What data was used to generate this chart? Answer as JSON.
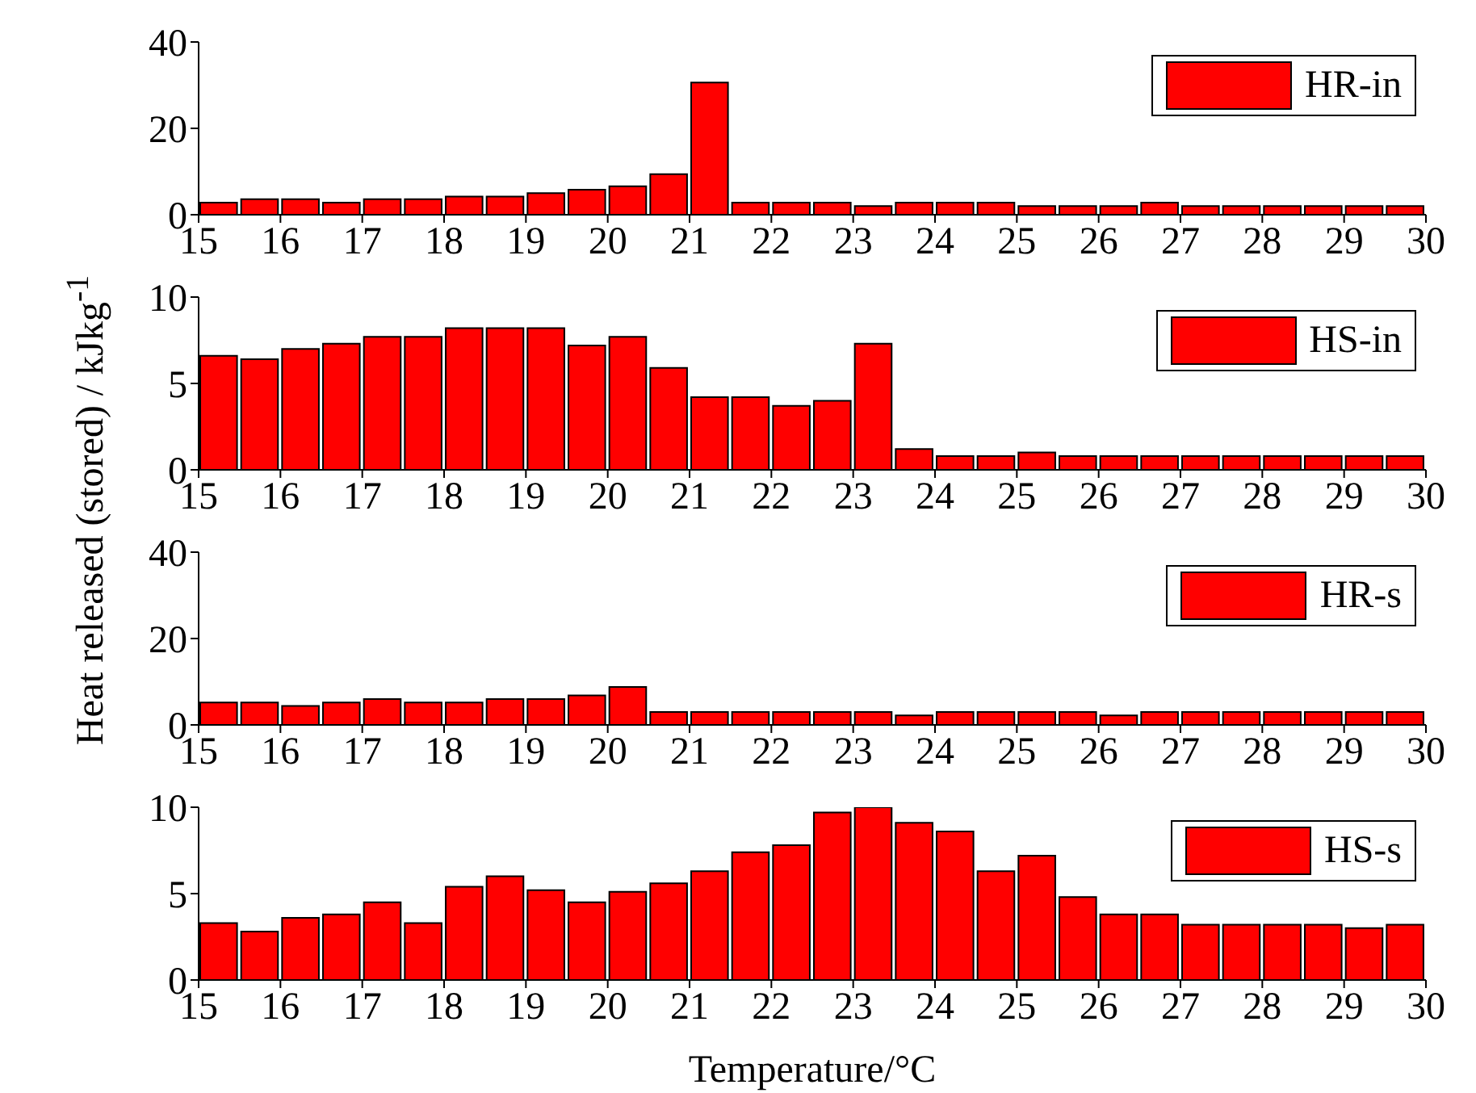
{
  "chart_data": [
    {
      "type": "histogram",
      "ylabel": "Heat released (stored) / kJkg$^{-1}$",
      "bins": [
        15,
        15.5,
        16,
        16.5,
        17,
        17.5,
        18,
        18.5,
        19,
        19.5,
        20,
        20.5,
        21,
        21.5,
        22,
        22.5,
        23,
        23.5,
        24,
        24.5,
        25,
        25.5,
        26,
        26.5,
        27,
        27.5,
        28,
        28.5,
        29,
        29.5,
        30
      ],
      "series": [
        {
          "name": "HR-in",
          "color": "#ff0000",
          "values": [
            2.8,
            3.6,
            3.6,
            2.8,
            3.6,
            3.6,
            4.2,
            4.2,
            5.0,
            5.8,
            6.6,
            9.4,
            30.6,
            2.8,
            2.8,
            2.8,
            2.0,
            2.8,
            2.8,
            2.8,
            2.0,
            2.0,
            2.0,
            2.8,
            2.0,
            2.0,
            2.0,
            2.0,
            2.0,
            2.0
          ]
        }
      ],
      "xlim": [
        15,
        30
      ],
      "xticks": [
        15,
        16,
        17,
        18,
        19,
        20,
        21,
        22,
        23,
        24,
        25,
        26,
        27,
        28,
        29,
        30
      ],
      "ylim": [
        0,
        40
      ],
      "yticks": [
        0,
        20,
        40
      ],
      "legend": "top right"
    },
    {
      "type": "histogram",
      "bins": [
        15,
        15.5,
        16,
        16.5,
        17,
        17.5,
        18,
        18.5,
        19,
        19.5,
        20,
        20.5,
        21,
        21.5,
        22,
        22.5,
        23,
        23.5,
        24,
        24.5,
        25,
        25.5,
        26,
        26.5,
        27,
        27.5,
        28,
        28.5,
        29,
        29.5,
        30
      ],
      "series": [
        {
          "name": "HS-in",
          "color": "#ff0000",
          "values": [
            6.6,
            6.4,
            7.0,
            7.3,
            7.7,
            7.7,
            8.2,
            8.2,
            8.2,
            7.2,
            7.7,
            5.9,
            4.2,
            4.2,
            3.7,
            4.0,
            7.3,
            1.2,
            0.8,
            0.8,
            1.0,
            0.8,
            0.8,
            0.8,
            0.8,
            0.8,
            0.8,
            0.8,
            0.8,
            0.8
          ]
        }
      ],
      "xlim": [
        15,
        30
      ],
      "xticks": [
        15,
        16,
        17,
        18,
        19,
        20,
        21,
        22,
        23,
        24,
        25,
        26,
        27,
        28,
        29,
        30
      ],
      "ylim": [
        0,
        10
      ],
      "yticks": [
        0,
        5,
        10
      ],
      "legend": "top right"
    },
    {
      "type": "histogram",
      "bins": [
        15,
        15.5,
        16,
        16.5,
        17,
        17.5,
        18,
        18.5,
        19,
        19.5,
        20,
        20.5,
        21,
        21.5,
        22,
        22.5,
        23,
        23.5,
        24,
        24.5,
        25,
        25.5,
        26,
        26.5,
        27,
        27.5,
        28,
        28.5,
        29,
        29.5,
        30
      ],
      "series": [
        {
          "name": "HR-s",
          "color": "#ff0000",
          "values": [
            5.2,
            5.2,
            4.4,
            5.2,
            6.0,
            5.2,
            5.2,
            6.0,
            6.0,
            6.8,
            8.8,
            3.0,
            3.0,
            3.0,
            3.0,
            3.0,
            3.0,
            2.2,
            3.0,
            3.0,
            3.0,
            3.0,
            2.2,
            3.0,
            3.0,
            3.0,
            3.0,
            3.0,
            3.0,
            3.0
          ]
        }
      ],
      "xlim": [
        15,
        30
      ],
      "xticks": [
        15,
        16,
        17,
        18,
        19,
        20,
        21,
        22,
        23,
        24,
        25,
        26,
        27,
        28,
        29,
        30
      ],
      "ylim": [
        0,
        40
      ],
      "yticks": [
        0,
        20,
        40
      ],
      "legend": "top right"
    },
    {
      "type": "histogram",
      "xlabel": "Temperature/°C",
      "bins": [
        15,
        15.5,
        16,
        16.5,
        17,
        17.5,
        18,
        18.5,
        19,
        19.5,
        20,
        20.5,
        21,
        21.5,
        22,
        22.5,
        23,
        23.5,
        24,
        24.5,
        25,
        25.5,
        26,
        26.5,
        27,
        27.5,
        28,
        28.5,
        29,
        29.5,
        30
      ],
      "series": [
        {
          "name": "HS-s",
          "color": "#ff0000",
          "values": [
            3.3,
            2.8,
            3.6,
            3.8,
            4.5,
            3.3,
            5.4,
            6.0,
            5.2,
            4.5,
            5.1,
            5.6,
            6.3,
            7.4,
            7.8,
            9.7,
            10,
            9.1,
            8.6,
            6.3,
            7.2,
            4.8,
            3.8,
            3.8,
            3.2,
            3.2,
            3.2,
            3.2,
            3.0,
            3.2
          ]
        }
      ],
      "xlim": [
        15,
        30
      ],
      "xticks": [
        15,
        16,
        17,
        18,
        19,
        20,
        21,
        22,
        23,
        24,
        25,
        26,
        27,
        28,
        29,
        30
      ],
      "ylim": [
        0,
        10
      ],
      "yticks": [
        0,
        5,
        10
      ],
      "legend": "top right"
    }
  ]
}
